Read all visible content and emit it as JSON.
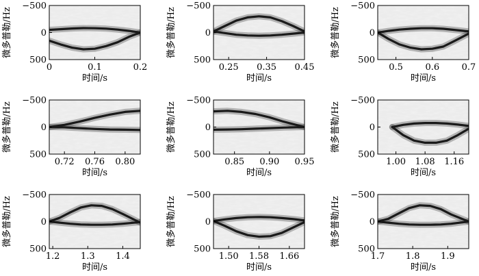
{
  "figure": {
    "background": "#ffffff",
    "panel_background": "#ececec",
    "curve_color": "#1a1a1a",
    "axis_color": "#000000"
  },
  "chart_data": [
    {
      "type": "spectrogram",
      "xlabel": "时间/s",
      "ylabel": "微多普勒/Hz",
      "xlim": [
        0,
        0.2
      ],
      "ylim": [
        -500,
        500
      ],
      "xticks": [
        {
          "v": 0,
          "t": "0"
        },
        {
          "v": 0.1,
          "t": "0.1"
        },
        {
          "v": 0.2,
          "t": "0.2"
        }
      ],
      "yticks": [
        {
          "v": -500,
          "t": "−500"
        },
        {
          "v": 0,
          "t": "0"
        },
        {
          "v": 500,
          "t": "500"
        }
      ],
      "series": [
        {
          "x": [
            0,
            0.025,
            0.05,
            0.075,
            0.1,
            0.125,
            0.15,
            0.175,
            0.2
          ],
          "y": [
            -50,
            -62,
            -75,
            -82,
            -80,
            -72,
            -55,
            -30,
            0
          ]
        },
        {
          "x": [
            0,
            0.025,
            0.05,
            0.075,
            0.1,
            0.125,
            0.15,
            0.175,
            0.2
          ],
          "y": [
            150,
            220,
            280,
            310,
            300,
            250,
            180,
            80,
            0
          ]
        }
      ]
    },
    {
      "type": "spectrogram",
      "xlabel": "时间/s",
      "ylabel": "微多普勒/Hz",
      "xlim": [
        0.21,
        0.45
      ],
      "ylim": [
        -500,
        500
      ],
      "xticks": [
        {
          "v": 0.25,
          "t": "0.25"
        },
        {
          "v": 0.35,
          "t": "0.35"
        },
        {
          "v": 0.45,
          "t": "0.45"
        }
      ],
      "yticks": [
        {
          "v": -500,
          "t": "−500"
        },
        {
          "v": 0,
          "t": "0"
        },
        {
          "v": 500,
          "t": "500"
        }
      ],
      "series": [
        {
          "x": [
            0.21,
            0.24,
            0.27,
            0.3,
            0.33,
            0.36,
            0.39,
            0.42,
            0.45
          ],
          "y": [
            -20,
            -120,
            -220,
            -280,
            -300,
            -280,
            -210,
            -120,
            -20
          ]
        },
        {
          "x": [
            0.21,
            0.24,
            0.27,
            0.3,
            0.33,
            0.36,
            0.39,
            0.42,
            0.45
          ],
          "y": [
            -20,
            10,
            40,
            55,
            60,
            55,
            40,
            20,
            0
          ]
        }
      ]
    },
    {
      "type": "spectrogram",
      "xlabel": "时间/s",
      "ylabel": "微多普勒/Hz",
      "xlim": [
        0.45,
        0.7
      ],
      "ylim": [
        -500,
        500
      ],
      "xticks": [
        {
          "v": 0.5,
          "t": "0.5"
        },
        {
          "v": 0.6,
          "t": "0.6"
        },
        {
          "v": 0.7,
          "t": "0.7"
        }
      ],
      "yticks": [
        {
          "v": -500,
          "t": "−500"
        },
        {
          "v": 0,
          "t": "0"
        },
        {
          "v": 500,
          "t": "500"
        }
      ],
      "series": [
        {
          "x": [
            0.45,
            0.48,
            0.51,
            0.54,
            0.57,
            0.6,
            0.63,
            0.66,
            0.7
          ],
          "y": [
            0,
            -30,
            -55,
            -70,
            -80,
            -80,
            -70,
            -50,
            -20
          ]
        },
        {
          "x": [
            0.45,
            0.48,
            0.51,
            0.54,
            0.57,
            0.6,
            0.63,
            0.66,
            0.7
          ],
          "y": [
            0,
            120,
            220,
            280,
            310,
            300,
            260,
            160,
            20
          ]
        }
      ]
    },
    {
      "type": "spectrogram",
      "xlabel": "时间/s",
      "ylabel": "微多普勒/Hz",
      "xlim": [
        0.7,
        0.82
      ],
      "ylim": [
        -500,
        500
      ],
      "xticks": [
        {
          "v": 0.72,
          "t": "0.72"
        },
        {
          "v": 0.76,
          "t": "0.76"
        },
        {
          "v": 0.8,
          "t": "0.80"
        }
      ],
      "yticks": [
        {
          "v": -500,
          "t": "−500"
        },
        {
          "v": 0,
          "t": "0"
        },
        {
          "v": 500,
          "t": "500"
        }
      ],
      "series": [
        {
          "x": [
            0.7,
            0.72,
            0.74,
            0.76,
            0.78,
            0.8,
            0.82
          ],
          "y": [
            0,
            -40,
            -100,
            -170,
            -230,
            -280,
            -300
          ]
        },
        {
          "x": [
            0.7,
            0.72,
            0.74,
            0.76,
            0.78,
            0.8,
            0.82
          ],
          "y": [
            0,
            5,
            20,
            35,
            45,
            50,
            55
          ]
        }
      ]
    },
    {
      "type": "spectrogram",
      "xlabel": "时间/s",
      "ylabel": "微多普勒/Hz",
      "xlim": [
        0.82,
        0.95
      ],
      "ylim": [
        -500,
        500
      ],
      "xticks": [
        {
          "v": 0.85,
          "t": "0.85"
        },
        {
          "v": 0.9,
          "t": "0.90"
        },
        {
          "v": 0.95,
          "t": "0.95"
        }
      ],
      "yticks": [
        {
          "v": -500,
          "t": "−500"
        },
        {
          "v": 0,
          "t": "0"
        },
        {
          "v": 500,
          "t": "500"
        }
      ],
      "series": [
        {
          "x": [
            0.82,
            0.84,
            0.86,
            0.88,
            0.9,
            0.92,
            0.95
          ],
          "y": [
            -290,
            -300,
            -280,
            -240,
            -180,
            -100,
            0
          ]
        },
        {
          "x": [
            0.82,
            0.84,
            0.86,
            0.88,
            0.9,
            0.92,
            0.95
          ],
          "y": [
            50,
            45,
            40,
            30,
            20,
            10,
            0
          ]
        }
      ]
    },
    {
      "type": "spectrogram",
      "xlabel": "时间/s",
      "ylabel": "微多普勒/Hz",
      "xlim": [
        0.95,
        1.2
      ],
      "ylim": [
        -500,
        500
      ],
      "xticks": [
        {
          "v": 1.0,
          "t": "1.00"
        },
        {
          "v": 1.08,
          "t": "1.08"
        },
        {
          "v": 1.16,
          "t": "1.16"
        }
      ],
      "yticks": [
        {
          "v": -500,
          "t": "−500"
        },
        {
          "v": 0,
          "t": "0"
        },
        {
          "v": 500,
          "t": "500"
        }
      ],
      "series": [
        {
          "x": [
            0.99,
            1.02,
            1.05,
            1.08,
            1.11,
            1.14,
            1.17,
            1.2
          ],
          "y": [
            0,
            -40,
            -65,
            -75,
            -75,
            -65,
            -45,
            -20
          ]
        },
        {
          "x": [
            0.99,
            1.02,
            1.05,
            1.08,
            1.11,
            1.14,
            1.17,
            1.2
          ],
          "y": [
            0,
            150,
            250,
            290,
            290,
            250,
            150,
            30
          ]
        }
      ]
    },
    {
      "type": "spectrogram",
      "xlabel": "时间/s",
      "ylabel": "微多普勒/Hz",
      "xlim": [
        1.19,
        1.45
      ],
      "ylim": [
        -500,
        500
      ],
      "xticks": [
        {
          "v": 1.2,
          "t": "1.2"
        },
        {
          "v": 1.3,
          "t": "1.3"
        },
        {
          "v": 1.4,
          "t": "1.4"
        }
      ],
      "yticks": [
        {
          "v": -500,
          "t": "−500"
        },
        {
          "v": 0,
          "t": "0"
        },
        {
          "v": 500,
          "t": "500"
        }
      ],
      "series": [
        {
          "x": [
            1.19,
            1.22,
            1.25,
            1.28,
            1.31,
            1.34,
            1.37,
            1.4,
            1.45
          ],
          "y": [
            0,
            -70,
            -170,
            -260,
            -300,
            -290,
            -230,
            -140,
            20
          ]
        },
        {
          "x": [
            1.19,
            1.22,
            1.25,
            1.28,
            1.31,
            1.34,
            1.37,
            1.4,
            1.45
          ],
          "y": [
            0,
            20,
            40,
            55,
            60,
            60,
            55,
            40,
            10
          ]
        }
      ]
    },
    {
      "type": "spectrogram",
      "xlabel": "时间/s",
      "ylabel": "微多普勒/Hz",
      "xlim": [
        1.46,
        1.7
      ],
      "ylim": [
        -500,
        500
      ],
      "xticks": [
        {
          "v": 1.5,
          "t": "1.50"
        },
        {
          "v": 1.58,
          "t": "1.58"
        },
        {
          "v": 1.66,
          "t": "1.66"
        }
      ],
      "yticks": [
        {
          "v": -500,
          "t": "−500"
        },
        {
          "v": 0,
          "t": "0"
        },
        {
          "v": 500,
          "t": "500"
        }
      ],
      "series": [
        {
          "x": [
            1.46,
            1.49,
            1.52,
            1.55,
            1.58,
            1.61,
            1.64,
            1.67,
            1.7
          ],
          "y": [
            -10,
            -40,
            -65,
            -80,
            -85,
            -80,
            -65,
            -45,
            -20
          ]
        },
        {
          "x": [
            1.46,
            1.49,
            1.52,
            1.55,
            1.58,
            1.61,
            1.64,
            1.67,
            1.7
          ],
          "y": [
            -10,
            80,
            180,
            250,
            280,
            270,
            210,
            110,
            10
          ]
        }
      ]
    },
    {
      "type": "spectrogram",
      "xlabel": "时间/s",
      "ylabel": "微多普勒/Hz",
      "xlim": [
        1.7,
        1.96
      ],
      "ylim": [
        -500,
        500
      ],
      "xticks": [
        {
          "v": 1.7,
          "t": "1.7"
        },
        {
          "v": 1.8,
          "t": "1.8"
        },
        {
          "v": 1.9,
          "t": "1.9"
        }
      ],
      "yticks": [
        {
          "v": -500,
          "t": "−500"
        },
        {
          "v": 0,
          "t": "0"
        },
        {
          "v": 500,
          "t": "500"
        }
      ],
      "series": [
        {
          "x": [
            1.7,
            1.73,
            1.76,
            1.79,
            1.82,
            1.85,
            1.88,
            1.91,
            1.96
          ],
          "y": [
            0,
            -50,
            -150,
            -250,
            -300,
            -290,
            -230,
            -130,
            0
          ]
        },
        {
          "x": [
            1.7,
            1.73,
            1.76,
            1.79,
            1.82,
            1.85,
            1.88,
            1.91,
            1.96
          ],
          "y": [
            0,
            20,
            40,
            55,
            60,
            60,
            55,
            40,
            0
          ]
        }
      ]
    }
  ]
}
